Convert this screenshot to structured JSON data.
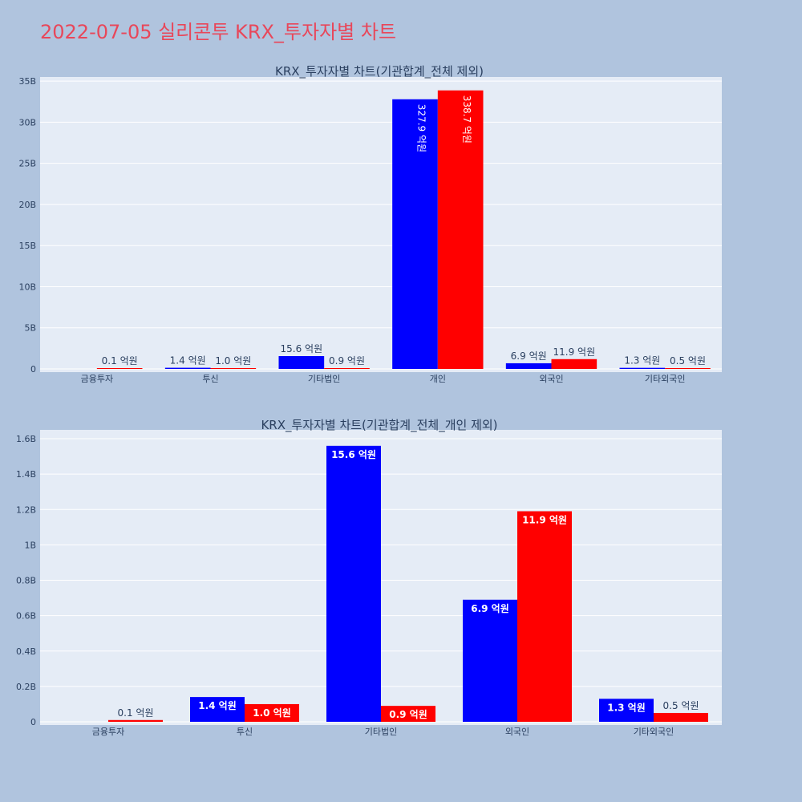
{
  "page": {
    "title": "2022-07-05 실리콘투 KRX_투자자별 차트",
    "background": "#b0c4de",
    "title_color": "#e8475a"
  },
  "chart_data": [
    {
      "type": "bar",
      "title": "KRX_투자자별 차트(기관합계_전체 제외)",
      "categories": [
        "금융투자",
        "투신",
        "기타법인",
        "개인",
        "외국인",
        "기타외국인"
      ],
      "series": [
        {
          "color": "#0000ff",
          "values": [
            null,
            140000000,
            1560000000,
            32790000000,
            690000000,
            130000000
          ],
          "labels": [
            "",
            "1.4 억원",
            "15.6 억원",
            "327.9 억원",
            "6.9 억원",
            "1.3 억원"
          ]
        },
        {
          "color": "#ff0000",
          "values": [
            10000000,
            100000000,
            90000000,
            33870000000,
            1190000000,
            50000000
          ],
          "labels": [
            "0.1 억원",
            "1.0 억원",
            "0.9 억원",
            "338.7 억원",
            "11.9 억원",
            "0.5 억원"
          ]
        }
      ],
      "ylim": [
        0,
        35500000000
      ],
      "yticks": [
        0,
        5000000000,
        10000000000,
        15000000000,
        20000000000,
        25000000000,
        30000000000,
        35000000000
      ],
      "ytick_labels": [
        "0",
        "5B",
        "10B",
        "15B",
        "20B",
        "25B",
        "30B",
        "35B"
      ],
      "grid": true,
      "legend": "none",
      "barmode": "group"
    },
    {
      "type": "bar",
      "title": "KRX_투자자별 차트(기관합계_전체_개인 제외)",
      "categories": [
        "금융투자",
        "투신",
        "기타법인",
        "외국인",
        "기타외국인"
      ],
      "series": [
        {
          "color": "#0000ff",
          "values": [
            null,
            140000000,
            1560000000,
            690000000,
            130000000
          ],
          "labels": [
            "",
            "1.4 억원",
            "15.6 억원",
            "6.9 억원",
            "1.3 억원"
          ]
        },
        {
          "color": "#ff0000",
          "values": [
            10000000,
            100000000,
            90000000,
            1190000000,
            50000000
          ],
          "labels": [
            "0.1 억원",
            "1.0 억원",
            "0.9 억원",
            "11.9 억원",
            "0.5 억원"
          ]
        }
      ],
      "ylim": [
        0,
        1650000000
      ],
      "yticks": [
        0,
        200000000,
        400000000,
        600000000,
        800000000,
        1000000000,
        1200000000,
        1400000000,
        1600000000
      ],
      "ytick_labels": [
        "0",
        "0.2B",
        "0.4B",
        "0.6B",
        "0.8B",
        "1B",
        "1.2B",
        "1.4B",
        "1.6B"
      ],
      "grid": true,
      "legend": "none",
      "barmode": "group"
    }
  ]
}
